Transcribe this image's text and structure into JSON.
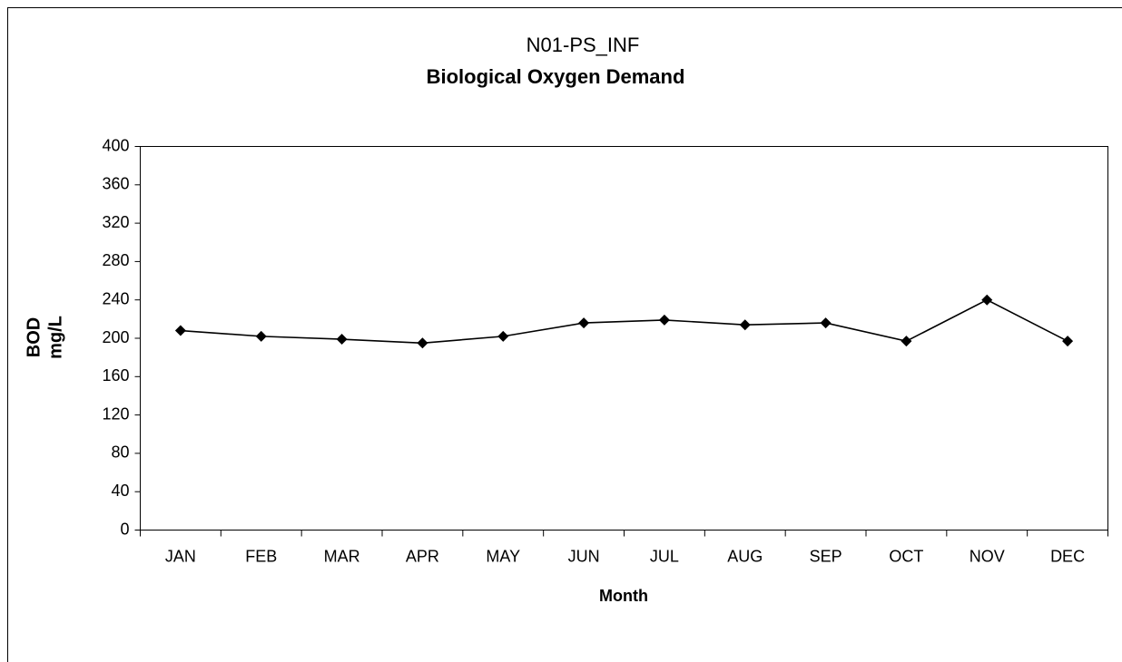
{
  "chart_data": {
    "type": "line",
    "title": "N01-PS_INF",
    "subtitle": "Biological Oxygen Demand",
    "ylabel": [
      "BOD",
      "mg/L"
    ],
    "xlabel": "Month",
    "categories": [
      "JAN",
      "FEB",
      "MAR",
      "APR",
      "MAY",
      "JUN",
      "JUL",
      "AUG",
      "SEP",
      "OCT",
      "NOV",
      "DEC"
    ],
    "series": [
      {
        "color": "#000000",
        "values": [
          208,
          202,
          199,
          195,
          202,
          216,
          219,
          214,
          216,
          197,
          240,
          197
        ]
      }
    ],
    "ylim": [
      0,
      400
    ],
    "yticks": [
      0,
      40,
      80,
      120,
      160,
      200,
      240,
      280,
      320,
      360,
      400
    ],
    "grid": false
  }
}
